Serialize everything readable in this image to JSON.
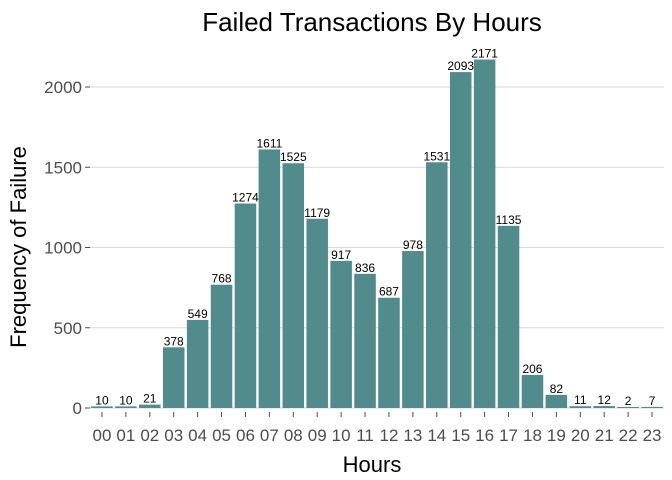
{
  "chart_data": {
    "type": "bar",
    "title": "Failed Transactions By Hours",
    "xlabel": "Hours",
    "ylabel": "Frequency of Failure",
    "categories": [
      "00",
      "01",
      "02",
      "03",
      "04",
      "05",
      "06",
      "07",
      "08",
      "09",
      "10",
      "11",
      "12",
      "13",
      "14",
      "15",
      "16",
      "17",
      "18",
      "19",
      "20",
      "21",
      "22",
      "23"
    ],
    "values": [
      10,
      10,
      21,
      378,
      549,
      768,
      1274,
      1611,
      1525,
      1179,
      917,
      836,
      687,
      978,
      1531,
      2093,
      2171,
      1135,
      206,
      82,
      11,
      12,
      2,
      7
    ],
    "ylim": [
      0,
      2200
    ],
    "yticks": [
      0,
      500,
      1000,
      1500,
      2000
    ],
    "grid": true,
    "bar_color": "#528b8b",
    "legend": "none"
  }
}
